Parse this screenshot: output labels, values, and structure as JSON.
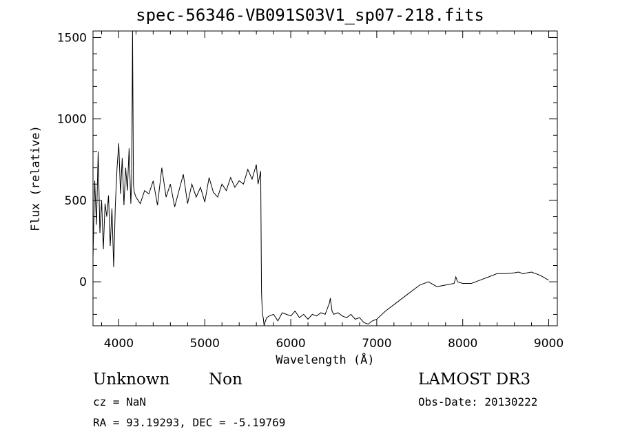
{
  "chart_data": {
    "type": "line",
    "title": "spec-56346-VB091S03V1_sp07-218.fits",
    "xlabel": "Wavelength (Å)",
    "ylabel": "Flux (relative)",
    "xlim": [
      3700,
      9100
    ],
    "ylim": [
      -270,
      1540
    ],
    "x_ticks": [
      4000,
      5000,
      6000,
      7000,
      8000,
      9000
    ],
    "y_ticks": [
      0,
      500,
      1000,
      1500
    ],
    "grid": false,
    "series": [
      {
        "x": [
          3700,
          3720,
          3740,
          3760,
          3780,
          3800,
          3820,
          3840,
          3860,
          3880,
          3900,
          3920,
          3940,
          3960,
          3980,
          4000,
          4020,
          4040,
          4060,
          4080,
          4100,
          4120,
          4140,
          4150,
          4160,
          4170,
          4180,
          4200,
          4250,
          4300,
          4350,
          4400,
          4450,
          4500,
          4550,
          4600,
          4650,
          4700,
          4750,
          4800,
          4850,
          4900,
          4950,
          5000,
          5050,
          5100,
          5150,
          5200,
          5250,
          5300,
          5350,
          5400,
          5450,
          5500,
          5550,
          5600,
          5620,
          5650,
          5660,
          5670,
          5680,
          5690,
          5700,
          5720,
          5750,
          5800,
          5850,
          5900,
          5950,
          6000,
          6050,
          6100,
          6150,
          6200,
          6250,
          6300,
          6350,
          6400,
          6450,
          6460,
          6480,
          6500,
          6550,
          6600,
          6650,
          6700,
          6750,
          6800,
          6850,
          6900,
          6950,
          7000,
          7100,
          7200,
          7300,
          7400,
          7500,
          7600,
          7700,
          7800,
          7900,
          7920,
          7940,
          8000,
          8100,
          8200,
          8300,
          8400,
          8500,
          8600,
          8650,
          8700,
          8800,
          8900,
          9000
        ],
        "y": [
          150,
          620,
          350,
          800,
          300,
          500,
          200,
          480,
          400,
          530,
          220,
          450,
          90,
          480,
          700,
          850,
          540,
          760,
          470,
          700,
          560,
          820,
          480,
          620,
          1540,
          600,
          550,
          520,
          480,
          560,
          540,
          620,
          470,
          700,
          520,
          600,
          460,
          560,
          660,
          480,
          600,
          520,
          580,
          490,
          640,
          550,
          520,
          600,
          560,
          640,
          580,
          620,
          600,
          690,
          630,
          720,
          600,
          680,
          -60,
          -200,
          -220,
          -270,
          -250,
          -220,
          -210,
          -200,
          -240,
          -190,
          -200,
          -210,
          -180,
          -220,
          -200,
          -230,
          -200,
          -210,
          -190,
          -200,
          -130,
          -100,
          -180,
          -200,
          -190,
          -210,
          -220,
          -200,
          -230,
          -220,
          -250,
          -260,
          -240,
          -230,
          -180,
          -140,
          -100,
          -60,
          -20,
          0,
          -30,
          -20,
          -10,
          30,
          0,
          -10,
          -10,
          10,
          30,
          50,
          50,
          55,
          60,
          50,
          60,
          40,
          10
        ]
      }
    ]
  },
  "footer": {
    "object_class": "Unknown",
    "object_subclass": "Non",
    "survey": "LAMOST DR3",
    "redshift": "cz = NaN",
    "obs_date": "Obs-Date: 20130222",
    "coords": "RA =  93.19293, DEC =  -5.19769"
  }
}
